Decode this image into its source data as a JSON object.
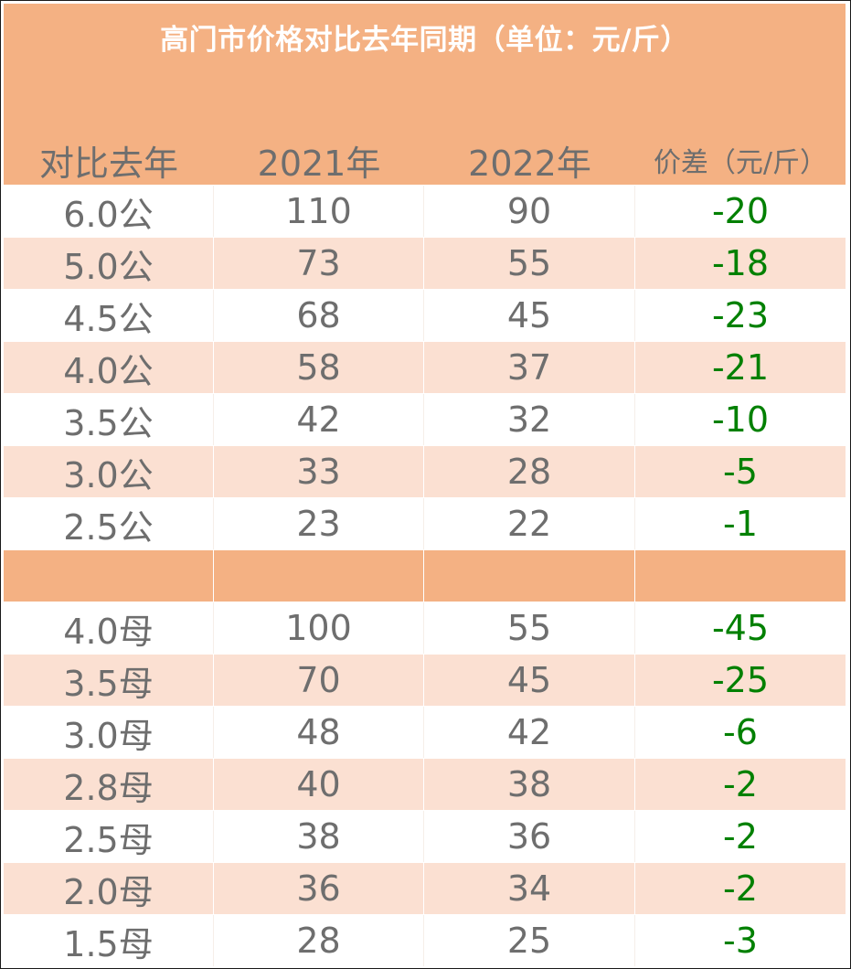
{
  "title": "高门市价格对比去年同期（单位：元/斤）",
  "columns": {
    "label": "对比去年",
    "y2021": "2021年",
    "y2022": "2022年",
    "diff": "价差（元/斤）"
  },
  "male_rows": [
    {
      "size": "6.0公",
      "y2021": "110",
      "y2022": "90",
      "diff": "-20"
    },
    {
      "size": "5.0公",
      "y2021": "73",
      "y2022": "55",
      "diff": "-18"
    },
    {
      "size": "4.5公",
      "y2021": "68",
      "y2022": "45",
      "diff": "-23"
    },
    {
      "size": "4.0公",
      "y2021": "58",
      "y2022": "37",
      "diff": "-21"
    },
    {
      "size": "3.5公",
      "y2021": "42",
      "y2022": "32",
      "diff": "-10"
    },
    {
      "size": "3.0公",
      "y2021": "33",
      "y2022": "28",
      "diff": "-5"
    },
    {
      "size": "2.5公",
      "y2021": "23",
      "y2022": "22",
      "diff": "-1"
    }
  ],
  "female_rows": [
    {
      "size": "4.0母",
      "y2021": "100",
      "y2022": "55",
      "diff": "-45"
    },
    {
      "size": "3.5母",
      "y2021": "70",
      "y2022": "45",
      "diff": "-25"
    },
    {
      "size": "3.0母",
      "y2021": "48",
      "y2022": "42",
      "diff": "-6"
    },
    {
      "size": "2.8母",
      "y2021": "40",
      "y2022": "38",
      "diff": "-2"
    },
    {
      "size": "2.5母",
      "y2021": "38",
      "y2022": "36",
      "diff": "-2"
    },
    {
      "size": "2.0母",
      "y2021": "36",
      "y2022": "34",
      "diff": "-2"
    },
    {
      "size": "1.5母",
      "y2021": "28",
      "y2022": "25",
      "diff": "-3"
    }
  ],
  "colors": {
    "header": "#f4b183",
    "alt_row": "#fbe0d2",
    "text": "#6e6e6e",
    "diff_text": "#008000"
  }
}
